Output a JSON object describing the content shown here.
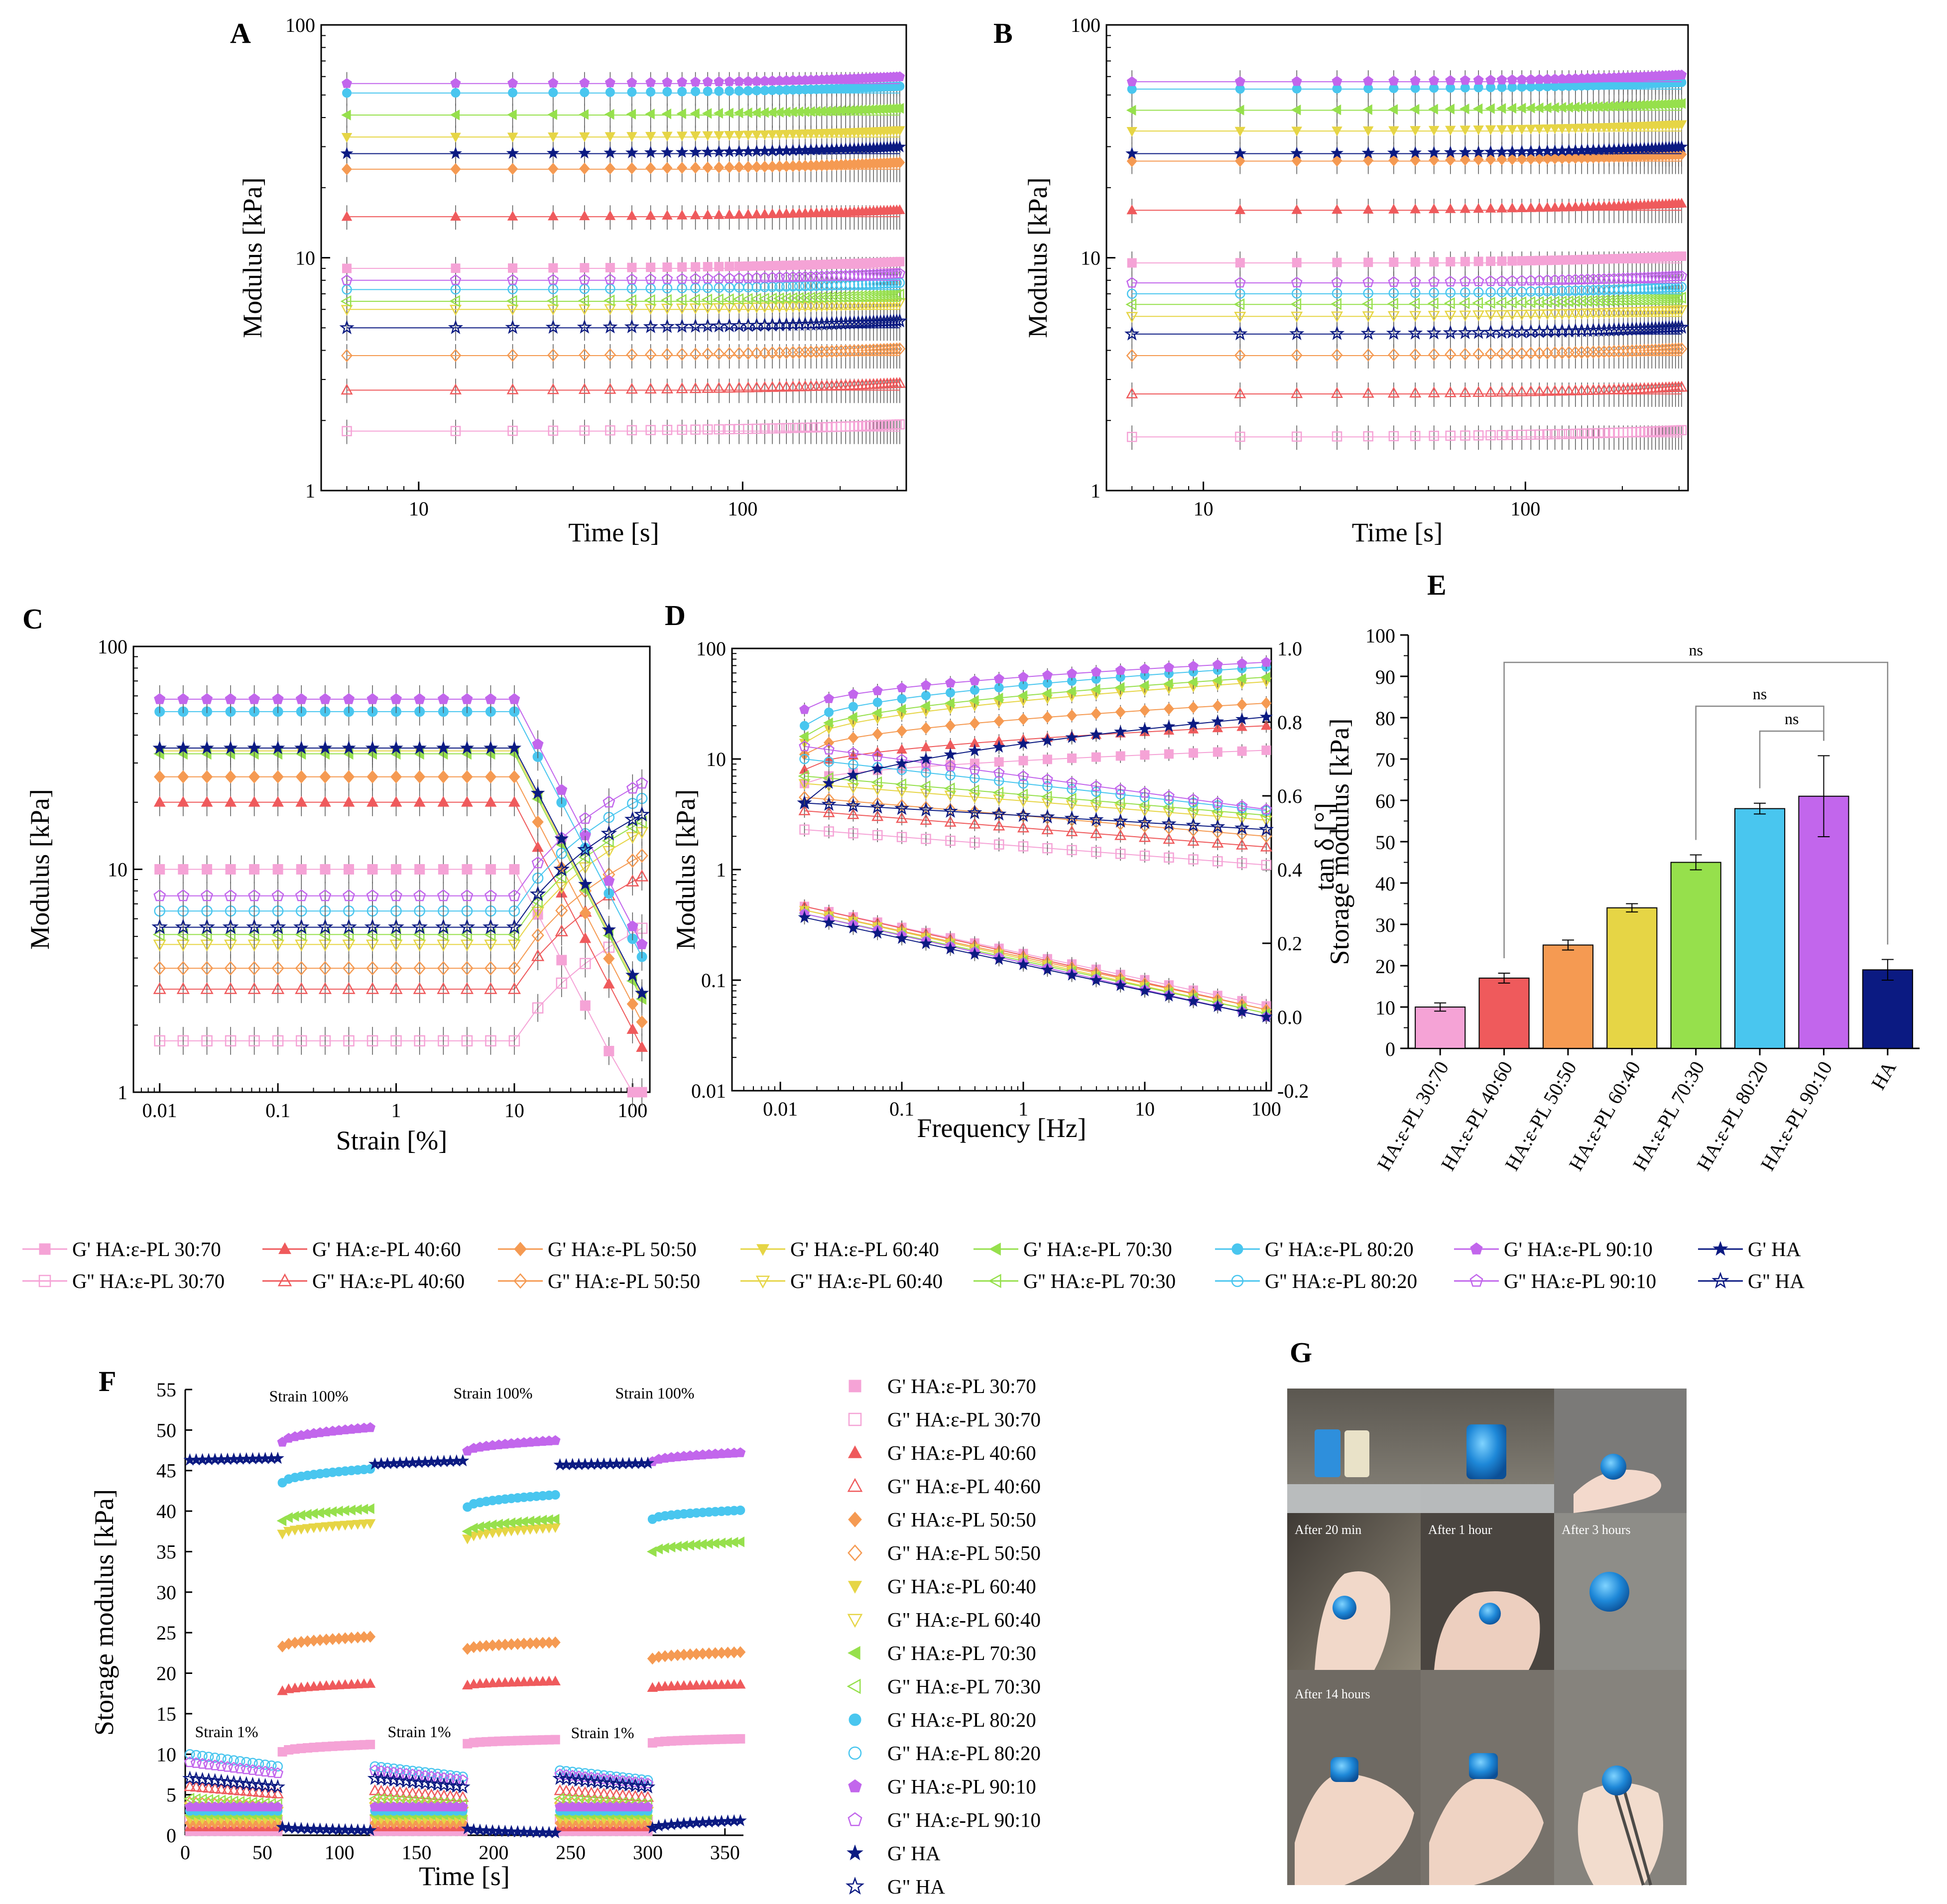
{
  "colors": {
    "p30": "#f5a3d6",
    "p40": "#ef5a5c",
    "p50": "#f59a52",
    "p60": "#e6d545",
    "p70": "#96e04c",
    "p80": "#49c6ef",
    "p90": "#c266ec",
    "pHA": "#0b1a82"
  },
  "series_order": [
    "p30",
    "p40",
    "p50",
    "p60",
    "p70",
    "p80",
    "p90",
    "pHA"
  ],
  "legend_labels": {
    "g1": [
      "G' HA:ε-PL 30:70",
      "G' HA:ε-PL 40:60",
      "G' HA:ε-PL 50:50",
      "G' HA:ε-PL 60:40",
      "G' HA:ε-PL 70:30",
      "G' HA:ε-PL 80:20",
      "G' HA:ε-PL 90:10",
      "G' HA"
    ],
    "g2": [
      "G'' HA:ε-PL 30:70",
      "G'' HA:ε-PL 40:60",
      "G'' HA:ε-PL 50:50",
      "G'' HA:ε-PL 60:40",
      "G'' HA:ε-PL 70:30",
      "G'' HA:ε-PL 80:20",
      "G'' HA:ε-PL 90:10",
      "G'' HA"
    ]
  },
  "legend_labels_f": {
    "g1": [
      "G' HA:ε-PL 30:70",
      "G' HA:ε-PL 40:60",
      "G' HA:ε-PL 50:50",
      "G' HA:ε-PL 60:40",
      "G' HA:ε-PL 70:30",
      "G' HA:ε-PL 80:20",
      "G' HA:ε-PL 90:10",
      "G' HA"
    ],
    "g2": [
      "G\" HA:ε-PL 30:70",
      "G\" HA:ε-PL 40:60",
      "G\" HA:ε-PL 50:50",
      "G\" HA:ε-PL 60:40",
      "G\" HA:ε-PL 70:30",
      "G\" HA:ε-PL 80:20",
      "G\" HA:ε-PL 90:10",
      "G\" HA"
    ]
  },
  "panel_labels": {
    "A": "A",
    "B": "B",
    "C": "C",
    "D": "D",
    "E": "E",
    "F": "F",
    "G": "G"
  },
  "photo_captions": [
    "After 20 min",
    "After 1 hour",
    "After 3 hours",
    "After 14 hours"
  ],
  "chart_data": [
    {
      "id": "A",
      "type": "scatter",
      "xscale": "log",
      "yscale": "log",
      "xlabel": "Time [s]",
      "ylabel": "Modulus [kPa]",
      "xlim": [
        5,
        320
      ],
      "ylim": [
        1,
        100
      ],
      "xticks": [
        10,
        100
      ],
      "xticklabels": [
        "10",
        "100"
      ],
      "yticks": [
        1,
        10,
        100
      ],
      "yticklabels": [
        "1",
        "10",
        "100"
      ],
      "times": [
        6,
        13,
        19.5,
        26,
        32.5,
        39,
        45.5,
        52,
        58.5,
        65,
        71.5,
        78,
        84.5,
        91,
        97.5,
        104,
        110.5,
        117,
        123.5,
        130,
        136.5,
        143,
        149.5,
        156,
        162.5,
        169,
        175.5,
        182,
        188.5,
        195,
        201.5,
        208,
        214.5,
        221,
        227.5,
        234,
        240.5,
        247,
        253.5,
        260,
        266.5,
        273,
        279.5,
        286,
        292.5,
        299,
        305.5
      ],
      "g1_values": [
        9.0,
        15.0,
        24.0,
        33.0,
        41.0,
        51.0,
        56.0,
        28.0
      ],
      "g2_values": [
        1.8,
        2.7,
        3.8,
        6.0,
        6.5,
        7.3,
        8.0,
        5.0
      ]
    },
    {
      "id": "B",
      "type": "scatter",
      "xscale": "log",
      "yscale": "log",
      "xlabel": "Time [s]",
      "ylabel": "Modulus [kPa]",
      "xlim": [
        5,
        320
      ],
      "ylim": [
        1,
        100
      ],
      "xticks": [
        10,
        100
      ],
      "xticklabels": [
        "10",
        "100"
      ],
      "yticks": [
        1,
        10,
        100
      ],
      "yticklabels": [
        "1",
        "10",
        "100"
      ],
      "times": [
        6,
        13,
        19.5,
        26,
        32.5,
        39,
        45.5,
        52,
        58.5,
        65,
        71.5,
        78,
        84.5,
        91,
        97.5,
        104,
        110.5,
        117,
        123.5,
        130,
        136.5,
        143,
        149.5,
        156,
        162.5,
        169,
        175.5,
        182,
        188.5,
        195,
        201.5,
        208,
        214.5,
        221,
        227.5,
        234,
        240.5,
        247,
        253.5,
        260,
        266.5,
        273,
        279.5,
        286,
        292.5,
        299,
        305.5
      ],
      "g1_values": [
        9.5,
        16.0,
        26.0,
        35.0,
        43.0,
        53.0,
        57.0,
        28.0
      ],
      "g2_values": [
        1.7,
        2.6,
        3.8,
        5.6,
        6.3,
        7.0,
        7.8,
        4.7
      ]
    },
    {
      "id": "C",
      "type": "scatter",
      "xscale": "log",
      "yscale": "log",
      "xlabel": "Strain [%]",
      "ylabel": "Modulus [kPa]",
      "xlim": [
        0.006,
        140
      ],
      "ylim": [
        1,
        100
      ],
      "xticks": [
        0.01,
        0.1,
        1,
        10,
        100
      ],
      "xticklabels": [
        "0.01",
        "0.1",
        "1",
        "10",
        "100"
      ],
      "yticks": [
        1,
        10,
        100
      ],
      "yticklabels": [
        "1",
        "10",
        "100"
      ],
      "strain": [
        0.01,
        0.0158,
        0.0251,
        0.0398,
        0.0631,
        0.1,
        0.158,
        0.251,
        0.398,
        0.631,
        1,
        1.58,
        2.51,
        3.98,
        6.31,
        10,
        15.8,
        25.1,
        39.8,
        63.1,
        100,
        120
      ],
      "g1_values": [
        10,
        20,
        26,
        34,
        33,
        51,
        58,
        35
      ],
      "g2_values": [
        1.7,
        2.9,
        3.6,
        4.6,
        5.1,
        6.5,
        7.6,
        5.5
      ]
    },
    {
      "id": "D",
      "type": "scatter",
      "xscale": "log",
      "yscale": "log",
      "xlabel": "Frequency [Hz]",
      "ylabel": "Modulus [kPa]",
      "y2label": "tan δ [°]",
      "xlim": [
        0.004,
        110
      ],
      "ylim": [
        0.01,
        100
      ],
      "y2lim": [
        -0.2,
        1.0
      ],
      "xticks": [
        0.01,
        0.1,
        1,
        10,
        100
      ],
      "xticklabels": [
        "0.01",
        "0.1",
        "1",
        "10",
        "100"
      ],
      "yticks": [
        0.01,
        0.1,
        1,
        10,
        100
      ],
      "yticklabels": [
        "0.01",
        "0.1",
        "1",
        "10",
        "100"
      ],
      "y2ticks": [
        -0.2,
        0.0,
        0.2,
        0.4,
        0.6,
        0.8,
        1.0
      ],
      "y2ticklabels": [
        "-0.2",
        "0.0",
        "0.2",
        "0.4",
        "0.6",
        "0.8",
        "1.0"
      ],
      "freq": [
        0.0158,
        0.0251,
        0.0398,
        0.0631,
        0.1,
        0.158,
        0.251,
        0.398,
        0.631,
        1,
        1.58,
        2.51,
        3.98,
        6.31,
        10,
        15.8,
        25.1,
        39.8,
        63.1,
        100
      ],
      "g1_start": [
        6.0,
        8.0,
        11.0,
        14.0,
        16.0,
        20.0,
        28.0,
        4.0
      ],
      "g1_end": [
        12.0,
        20.0,
        32.0,
        50.0,
        55.0,
        68.0,
        75.0,
        24.0
      ],
      "g2_start": [
        2.3,
        3.4,
        4.5,
        6.0,
        7.0,
        10.0,
        13.0,
        4.0
      ],
      "g2_end": [
        1.1,
        1.6,
        2.0,
        2.8,
        3.1,
        3.4,
        3.5,
        2.3
      ],
      "tand_start": [
        0.3,
        0.3,
        0.29,
        0.29,
        0.28,
        0.28,
        0.28,
        0.27
      ],
      "tand_end": [
        0.03,
        0.02,
        0.02,
        0.01,
        0.01,
        0.0,
        0.0,
        0.0
      ]
    },
    {
      "id": "E",
      "type": "bar",
      "ylabel": "Storage modulus [kPa]",
      "ylim": [
        0,
        100
      ],
      "yticks": [
        0,
        10,
        20,
        30,
        40,
        50,
        60,
        70,
        80,
        90,
        100
      ],
      "categories": [
        "HA:ε-PL 30:70",
        "HA:ε-PL 40:60",
        "HA:ε-PL 50:50",
        "HA:ε-PL 60:40",
        "HA:ε-PL 70:30",
        "HA:ε-PL 80:20",
        "HA:ε-PL 90:10",
        "HA"
      ],
      "values": [
        10,
        17,
        25,
        34,
        45,
        58,
        61,
        19
      ],
      "errors": [
        1.0,
        1.2,
        1.2,
        1.0,
        1.8,
        1.3,
        9.8,
        2.5
      ],
      "significance": [
        {
          "from": 1,
          "to": 7,
          "label": "ns"
        },
        {
          "from": 4,
          "to": 6,
          "label": "ns"
        },
        {
          "from": 5,
          "to": 6,
          "label": "ns"
        }
      ]
    },
    {
      "id": "F",
      "type": "scatter",
      "xlabel": "Time [s]",
      "ylabel": "Storage modulus [kPa]",
      "xlim": [
        0,
        362
      ],
      "ylim": [
        0,
        55
      ],
      "xticks": [
        0,
        50,
        100,
        150,
        200,
        250,
        300,
        350
      ],
      "yticks": [
        0,
        5,
        10,
        15,
        20,
        25,
        30,
        35,
        40,
        45,
        50,
        55
      ],
      "annotations": [
        "Strain 100%",
        "Strain 100%",
        "Strain 100%",
        "Strain 1%",
        "Strain 1%",
        "Strain 1%"
      ],
      "high_strain_g1": {
        "p30": [
          [
            10.3,
            11.2
          ],
          [
            11.3,
            11.8
          ],
          [
            11.4,
            11.9
          ]
        ],
        "p40": [
          [
            17.8,
            18.7
          ],
          [
            18.5,
            19.0
          ],
          [
            18.2,
            18.6
          ]
        ],
        "p50": [
          [
            23.3,
            24.5
          ],
          [
            23.0,
            23.8
          ],
          [
            21.8,
            22.6
          ]
        ],
        "p60": [
          [
            37.2,
            38.5
          ],
          [
            36.6,
            38.0
          ],
          [
            null,
            null
          ]
        ],
        "p70": [
          [
            38.8,
            40.3
          ],
          [
            37.5,
            39.0
          ],
          [
            35.0,
            36.2
          ]
        ],
        "p80": [
          [
            43.5,
            45.2
          ],
          [
            40.5,
            42.0
          ],
          [
            39.0,
            40.1
          ]
        ],
        "p90": [
          [
            48.5,
            50.3
          ],
          [
            47.4,
            48.7
          ],
          [
            46.1,
            47.2
          ]
        ],
        "pHA": [
          [
            1.0,
            0.6
          ],
          [
            0.8,
            0.3
          ],
          [
            0.9,
            1.8
          ]
        ]
      },
      "low_strain_g1": {
        "p30": [
          [
            0.5,
            0.5
          ],
          [
            0.5,
            0.5
          ],
          [
            0.5,
            0.5
          ]
        ],
        "p40": [
          [
            1.0,
            1.0
          ],
          [
            1.0,
            1.0
          ],
          [
            1.0,
            1.0
          ]
        ],
        "p50": [
          [
            1.5,
            1.5
          ],
          [
            1.5,
            1.5
          ],
          [
            1.5,
            1.5
          ]
        ],
        "p60": [
          [
            2.0,
            2.0
          ],
          [
            2.0,
            2.0
          ],
          [
            2.0,
            2.0
          ]
        ],
        "p70": [
          [
            2.5,
            2.5
          ],
          [
            2.5,
            2.5
          ],
          [
            2.5,
            2.5
          ]
        ],
        "p80": [
          [
            3.0,
            3.0
          ],
          [
            3.0,
            3.0
          ],
          [
            3.0,
            3.0
          ]
        ],
        "p90": [
          [
            3.5,
            3.5
          ],
          [
            3.5,
            3.5
          ],
          [
            3.5,
            3.5
          ]
        ],
        "pHA": [
          [
            46.3,
            46.5
          ],
          [
            45.8,
            46.2
          ],
          [
            45.7,
            45.9
          ]
        ]
      },
      "g2_low": {
        "p30": [
          2.0,
          2.0,
          2.0
        ],
        "p40": [
          6.0,
          5.5,
          5.5
        ],
        "p50": [
          4.0,
          4.0,
          4.0
        ],
        "p60": [
          3.5,
          3.5,
          3.5
        ],
        "p70": [
          4.5,
          4.5,
          4.5
        ],
        "p80": [
          10.0,
          8.5,
          8.0
        ],
        "p90": [
          9.0,
          8.0,
          7.5
        ],
        "pHA": [
          7.0,
          7.0,
          7.0
        ]
      }
    }
  ]
}
